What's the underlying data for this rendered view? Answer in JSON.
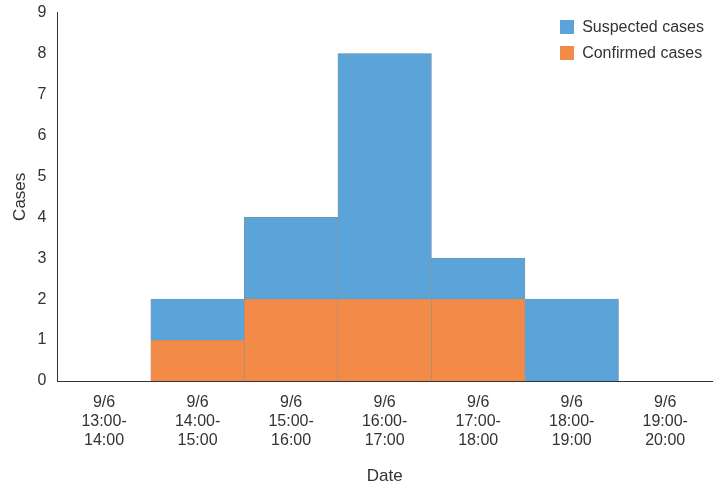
{
  "chart_data": {
    "type": "bar",
    "stacked": true,
    "grid": false,
    "legend": "upper right",
    "x_label": "Date",
    "y_label": "Cases",
    "categories": [
      "9/6\n13:00-\n14:00",
      "9/6\n14:00-\n15:00",
      "9/6\n15:00-\n16:00",
      "9/6\n16:00-\n17:00",
      "9/6\n17:00-\n18:00",
      "9/6\n18:00-\n19:00",
      "9/6\n19:00-\n20:00"
    ],
    "series": [
      {
        "name": "Confirmed cases",
        "color": "#f28b48",
        "values": [
          0,
          1,
          2,
          2,
          2,
          0,
          0
        ]
      },
      {
        "name": "Suspected cases",
        "color": "#5ba4d9",
        "values": [
          0,
          1,
          2,
          6,
          1,
          2,
          0
        ]
      }
    ],
    "ylim": [
      0,
      9
    ],
    "yticks": [
      0,
      1,
      2,
      3,
      4,
      5,
      6,
      7,
      8,
      9
    ]
  }
}
